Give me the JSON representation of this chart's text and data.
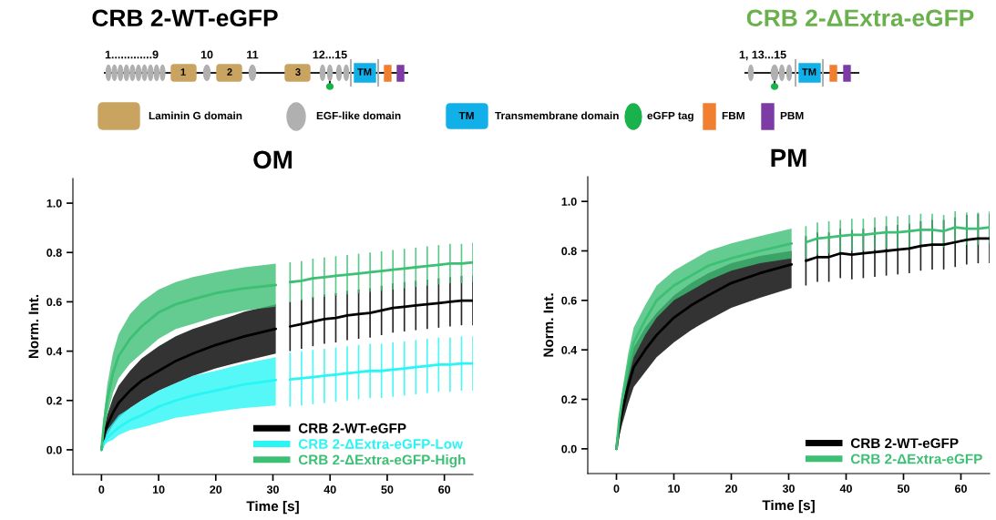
{
  "chart_data": [
    {
      "type": "other",
      "title": "CRB 2-WT-eGFP",
      "subtitle": "CRB 2-ΔExtra-eGFP",
      "annotations": [
        "1.............9",
        "10",
        "11",
        "12...15",
        "1",
        "2",
        "3",
        "TM",
        "1, 13...15",
        "TM",
        "Laminin G domain",
        "EGF-like domain",
        "TM",
        "Transmembrane domain",
        "eGFP tag",
        "FBM",
        "PBM"
      ]
    },
    {
      "type": "line",
      "title": "OM",
      "xlabel": "Time [s]",
      "ylabel": "Norm. Int.",
      "legend": "bottom right",
      "xlim": [
        -5,
        65
      ],
      "xticks": [
        0,
        10,
        20,
        30,
        40,
        50,
        60
      ],
      "ylim": [
        -0.1,
        1.1
      ],
      "yticks": [
        {
          "value": 0,
          "label": "0.0"
        },
        {
          "value": 0.2,
          "label": "0.2"
        },
        {
          "value": 0.4,
          "label": "0.4"
        },
        {
          "value": 0.6,
          "label": "0.6"
        },
        {
          "value": 0.8,
          "label": "0.8"
        },
        {
          "value": 1.0,
          "label": "1.0"
        }
      ],
      "series": [
        {
          "name": "CRB 2-WT-eGFP",
          "color": "#000000",
          "x": [
            0,
            0.5,
            1,
            2,
            3,
            5,
            7,
            10,
            13,
            16,
            20,
            25,
            30.5
          ],
          "values": [
            0,
            0.06,
            0.1,
            0.15,
            0.19,
            0.24,
            0.28,
            0.32,
            0.36,
            0.39,
            0.425,
            0.46,
            0.49
          ],
          "lower": [
            0,
            0.03,
            0.06,
            0.1,
            0.13,
            0.17,
            0.2,
            0.24,
            0.27,
            0.3,
            0.33,
            0.36,
            0.39
          ],
          "upper": [
            0,
            0.09,
            0.14,
            0.21,
            0.26,
            0.32,
            0.37,
            0.42,
            0.46,
            0.49,
            0.52,
            0.56,
            0.59
          ]
        },
        {
          "name": "CRB 2-ΔExtra-eGFP-Low",
          "color": "#2af5f5",
          "x": [
            0,
            0.5,
            1,
            2,
            3,
            5,
            7,
            10,
            13,
            16,
            20,
            25,
            30.5
          ],
          "values": [
            0,
            0.03,
            0.05,
            0.07,
            0.09,
            0.12,
            0.14,
            0.175,
            0.2,
            0.22,
            0.24,
            0.265,
            0.283
          ],
          "lower": [
            0,
            0.02,
            0.03,
            0.04,
            0.06,
            0.08,
            0.09,
            0.11,
            0.13,
            0.14,
            0.155,
            0.17,
            0.18
          ],
          "upper": [
            0,
            0.05,
            0.08,
            0.11,
            0.14,
            0.17,
            0.2,
            0.24,
            0.27,
            0.3,
            0.32,
            0.35,
            0.375
          ]
        },
        {
          "name": "CRB 2-ΔExtra-eGFP-High",
          "color": "#3dbf74",
          "x": [
            0,
            0.5,
            1,
            2,
            3,
            5,
            7,
            10,
            13,
            16,
            20,
            25,
            30.5
          ],
          "values": [
            0,
            0.12,
            0.2,
            0.31,
            0.38,
            0.45,
            0.5,
            0.557,
            0.59,
            0.61,
            0.635,
            0.655,
            0.668
          ],
          "lower": [
            0,
            0.08,
            0.14,
            0.23,
            0.29,
            0.35,
            0.39,
            0.45,
            0.49,
            0.51,
            0.54,
            0.565,
            0.58
          ],
          "upper": [
            0,
            0.16,
            0.26,
            0.39,
            0.47,
            0.55,
            0.6,
            0.65,
            0.68,
            0.7,
            0.72,
            0.74,
            0.755
          ]
        },
        {
          "color": "#000000",
          "x": [
            33,
            35,
            37,
            39,
            41,
            43,
            45,
            47,
            49,
            51,
            53,
            55,
            57,
            59,
            61,
            63,
            65
          ],
          "values": [
            0.5,
            0.51,
            0.52,
            0.53,
            0.535,
            0.545,
            0.55,
            0.555,
            0.565,
            0.575,
            0.58,
            0.585,
            0.59,
            0.595,
            0.6,
            0.605,
            0.605
          ],
          "errors": [
            0.1,
            0.1,
            0.1,
            0.1,
            0.1,
            0.1,
            0.1,
            0.1,
            0.1,
            0.1,
            0.1,
            0.1,
            0.1,
            0.1,
            0.1,
            0.1,
            0.1
          ]
        },
        {
          "color": "#2af5f5",
          "x": [
            33,
            35,
            37,
            39,
            41,
            43,
            45,
            47,
            49,
            51,
            53,
            55,
            57,
            59,
            61,
            63,
            65
          ],
          "values": [
            0.285,
            0.29,
            0.295,
            0.3,
            0.305,
            0.31,
            0.315,
            0.32,
            0.32,
            0.325,
            0.33,
            0.335,
            0.34,
            0.345,
            0.345,
            0.35,
            0.35
          ],
          "errors": [
            0.11,
            0.11,
            0.11,
            0.11,
            0.11,
            0.11,
            0.11,
            0.11,
            0.11,
            0.11,
            0.11,
            0.11,
            0.11,
            0.11,
            0.11,
            0.11,
            0.11
          ]
        },
        {
          "color": "#3dbf74",
          "x": [
            33,
            35,
            37,
            39,
            41,
            43,
            45,
            47,
            49,
            51,
            53,
            55,
            57,
            59,
            61,
            63,
            65
          ],
          "values": [
            0.68,
            0.685,
            0.695,
            0.7,
            0.705,
            0.71,
            0.715,
            0.72,
            0.725,
            0.73,
            0.735,
            0.74,
            0.745,
            0.75,
            0.755,
            0.755,
            0.76
          ],
          "errors": [
            0.08,
            0.08,
            0.08,
            0.08,
            0.08,
            0.08,
            0.08,
            0.08,
            0.08,
            0.08,
            0.08,
            0.08,
            0.08,
            0.08,
            0.08,
            0.08,
            0.08
          ]
        }
      ]
    },
    {
      "type": "line",
      "title": "PM",
      "xlabel": "Time [s]",
      "ylabel": "Norm. Int.",
      "legend": "bottom right",
      "xlim": [
        -5,
        65
      ],
      "xticks": [
        0,
        10,
        20,
        30,
        40,
        50,
        60
      ],
      "ylim": [
        -0.1,
        1.1
      ],
      "yticks": [
        {
          "value": 0,
          "label": "0.0"
        },
        {
          "value": 0.2,
          "label": "0.2"
        },
        {
          "value": 0.4,
          "label": "0.4"
        },
        {
          "value": 0.6,
          "label": "0.6"
        },
        {
          "value": 0.8,
          "label": "0.8"
        },
        {
          "value": 1.0,
          "label": "1.0"
        }
      ],
      "series": [
        {
          "name": "CRB 2-WT-eGFP",
          "color": "#000000",
          "x": [
            0,
            0.5,
            1,
            2,
            3,
            5,
            7,
            10,
            13,
            16,
            20,
            25,
            30.5
          ],
          "values": [
            0,
            0.09,
            0.15,
            0.25,
            0.33,
            0.4,
            0.46,
            0.53,
            0.58,
            0.62,
            0.67,
            0.71,
            0.745
          ],
          "lower": [
            0,
            0.05,
            0.1,
            0.18,
            0.25,
            0.31,
            0.37,
            0.43,
            0.48,
            0.52,
            0.57,
            0.61,
            0.65
          ],
          "upper": [
            0,
            0.13,
            0.2,
            0.32,
            0.41,
            0.49,
            0.55,
            0.62,
            0.67,
            0.71,
            0.75,
            0.78,
            0.8
          ]
        },
        {
          "name": "CRB 2-ΔExtra-eGFP",
          "color": "#3dbf74",
          "x": [
            0,
            0.5,
            1,
            2,
            3,
            5,
            7,
            10,
            13,
            16,
            20,
            25,
            30.5
          ],
          "values": [
            0,
            0.12,
            0.2,
            0.33,
            0.43,
            0.52,
            0.6,
            0.66,
            0.7,
            0.74,
            0.77,
            0.8,
            0.83
          ],
          "lower": [
            0,
            0.1,
            0.17,
            0.28,
            0.37,
            0.46,
            0.53,
            0.6,
            0.64,
            0.68,
            0.72,
            0.75,
            0.77
          ],
          "upper": [
            0,
            0.14,
            0.23,
            0.38,
            0.49,
            0.58,
            0.66,
            0.72,
            0.76,
            0.8,
            0.83,
            0.86,
            0.89
          ]
        },
        {
          "color": "#000000",
          "x": [
            33,
            35,
            37,
            39,
            41,
            43,
            45,
            47,
            49,
            51,
            53,
            55,
            57,
            59,
            61,
            63,
            65
          ],
          "values": [
            0.76,
            0.775,
            0.775,
            0.79,
            0.785,
            0.79,
            0.795,
            0.8,
            0.805,
            0.81,
            0.82,
            0.825,
            0.825,
            0.835,
            0.845,
            0.85,
            0.85
          ],
          "errors": [
            0.1,
            0.1,
            0.1,
            0.1,
            0.1,
            0.1,
            0.1,
            0.1,
            0.1,
            0.1,
            0.1,
            0.1,
            0.1,
            0.1,
            0.1,
            0.1,
            0.1
          ]
        },
        {
          "color": "#3dbf74",
          "x": [
            33,
            35,
            37,
            39,
            41,
            43,
            45,
            47,
            49,
            51,
            53,
            55,
            57,
            59,
            61,
            63,
            65
          ],
          "values": [
            0.835,
            0.85,
            0.855,
            0.86,
            0.865,
            0.865,
            0.87,
            0.875,
            0.875,
            0.88,
            0.885,
            0.885,
            0.88,
            0.895,
            0.89,
            0.89,
            0.895
          ],
          "errors": [
            0.065,
            0.065,
            0.065,
            0.065,
            0.065,
            0.065,
            0.065,
            0.065,
            0.065,
            0.065,
            0.065,
            0.065,
            0.065,
            0.065,
            0.065,
            0.065,
            0.065
          ]
        }
      ]
    }
  ]
}
